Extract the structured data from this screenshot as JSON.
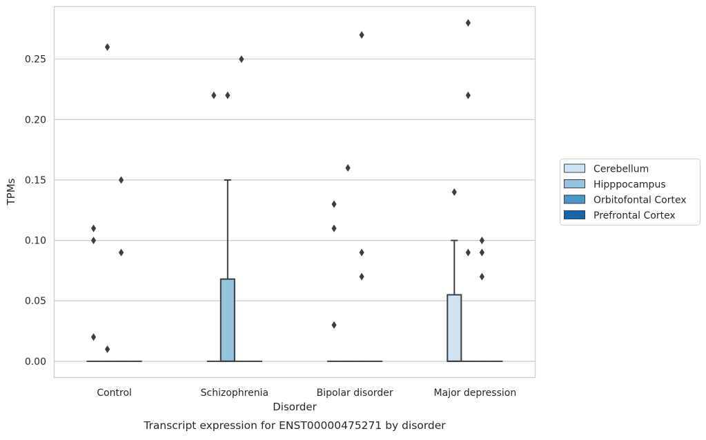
{
  "chart_data": {
    "type": "box",
    "title": "",
    "caption": "Transcript expression for ENST00000475271 by disorder",
    "xlabel": "Disorder",
    "ylabel": "TPMs",
    "ylim": [
      -0.0135,
      0.2935
    ],
    "yticks": [
      "0.00",
      "0.05",
      "0.10",
      "0.15",
      "0.20",
      "0.25"
    ],
    "yticks_values": [
      0,
      0.05,
      0.1,
      0.15,
      0.2,
      0.25
    ],
    "categories": [
      "Control",
      "Schizophrenia",
      "Bipolar disorder",
      "Major depression"
    ],
    "grid": "horizontal",
    "legend_position": "right",
    "series": [
      {
        "name": "Cerebellum",
        "color": "#d0e1f2",
        "boxes": [
          {
            "q1": 0,
            "median": 0,
            "q3": 0,
            "whisker_low": 0,
            "whisker_high": 0,
            "outliers": [
              0.11,
              0.1,
              0.02
            ]
          },
          {
            "q1": 0,
            "median": 0,
            "q3": 0,
            "whisker_low": 0,
            "whisker_high": 0,
            "outliers": [
              0.22
            ]
          },
          {
            "q1": 0,
            "median": 0,
            "q3": 0,
            "whisker_low": 0,
            "whisker_high": 0,
            "outliers": [
              0.13,
              0.11,
              0.03
            ]
          },
          {
            "q1": 0,
            "median": 0,
            "q3": 0.055,
            "whisker_low": 0,
            "whisker_high": 0.1,
            "outliers": [
              0.14
            ]
          }
        ]
      },
      {
        "name": "Hipppocampus",
        "color": "#94c4df",
        "boxes": [
          {
            "q1": 0,
            "median": 0,
            "q3": 0,
            "whisker_low": 0,
            "whisker_high": 0,
            "outliers": [
              0.26,
              0.01
            ]
          },
          {
            "q1": 0,
            "median": 0,
            "q3": 0.068,
            "whisker_low": 0,
            "whisker_high": 0.15,
            "outliers": [
              0.22
            ]
          },
          {
            "q1": 0,
            "median": 0,
            "q3": 0,
            "whisker_low": 0,
            "whisker_high": 0,
            "outliers": [
              0.16
            ]
          },
          {
            "q1": 0,
            "median": 0,
            "q3": 0,
            "whisker_low": 0,
            "whisker_high": 0,
            "outliers": [
              0.28,
              0.22,
              0.09
            ]
          }
        ]
      },
      {
        "name": "Orbitofontal Cortex",
        "color": "#4a98c9",
        "boxes": [
          {
            "q1": 0,
            "median": 0,
            "q3": 0,
            "whisker_low": 0,
            "whisker_high": 0,
            "outliers": [
              0.15,
              0.09
            ]
          },
          {
            "q1": 0,
            "median": 0,
            "q3": 0,
            "whisker_low": 0,
            "whisker_high": 0,
            "outliers": [
              0.25
            ]
          },
          {
            "q1": 0,
            "median": 0,
            "q3": 0,
            "whisker_low": 0,
            "whisker_high": 0,
            "outliers": [
              0.27,
              0.09,
              0.07
            ]
          },
          {
            "q1": 0,
            "median": 0,
            "q3": 0,
            "whisker_low": 0,
            "whisker_high": 0,
            "outliers": [
              0.1,
              0.09,
              0.07
            ]
          }
        ]
      },
      {
        "name": "Prefrontal Cortex",
        "color": "#1764ab",
        "boxes": [
          {
            "q1": 0,
            "median": 0,
            "q3": 0,
            "whisker_low": 0,
            "whisker_high": 0,
            "outliers": []
          },
          {
            "q1": 0,
            "median": 0,
            "q3": 0,
            "whisker_low": 0,
            "whisker_high": 0,
            "outliers": []
          },
          {
            "q1": 0,
            "median": 0,
            "q3": 0,
            "whisker_low": 0,
            "whisker_high": 0,
            "outliers": []
          },
          {
            "q1": 0,
            "median": 0,
            "q3": 0,
            "whisker_low": 0,
            "whisker_high": 0,
            "outliers": []
          }
        ]
      }
    ]
  }
}
